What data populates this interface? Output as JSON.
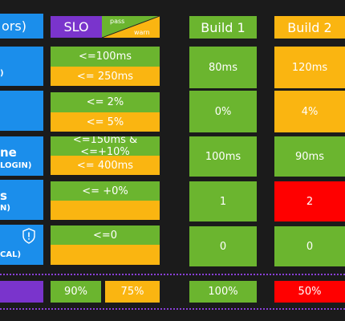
{
  "header": {
    "metric_partial": "ors)",
    "slo": "SLO",
    "pass": "pass",
    "warn": "warn",
    "build1": "Build 1",
    "build2": "Build 2"
  },
  "rows": [
    {
      "label": "",
      "sub": ")",
      "slo_pass": "<=100ms",
      "slo_warn": "<= 250ms",
      "b1": "80ms",
      "b2": "120ms"
    },
    {
      "label": "",
      "sub": "",
      "slo_pass": "<= 2%",
      "slo_warn": "<= 5%",
      "b1": "0%",
      "b2": "4%"
    },
    {
      "label": "ne",
      "sub": "LOGIN)",
      "slo_pass": "<=150ms & <=+10%",
      "slo_warn": "<= 400ms",
      "b1": "100ms",
      "b2": "90ms"
    },
    {
      "label": "s",
      "sub": "N)",
      "slo_pass": "<= +0%",
      "slo_warn": "",
      "b1": "1",
      "b2": "2"
    },
    {
      "label": "",
      "sub": "CAL)",
      "slo_pass": "<=0",
      "slo_warn": "",
      "b1": "0",
      "b2": "0"
    }
  ],
  "summary": {
    "slo_pass": "90%",
    "slo_warn": "75%",
    "b1": "100%",
    "b2": "50%"
  },
  "colors": {
    "blue": "#1b8eeb",
    "green": "#6bb52f",
    "yellow": "#fab511",
    "red": "#ff0000",
    "purple": "#7a34cc"
  },
  "icons": {
    "row5": "shield-warning-icon"
  }
}
